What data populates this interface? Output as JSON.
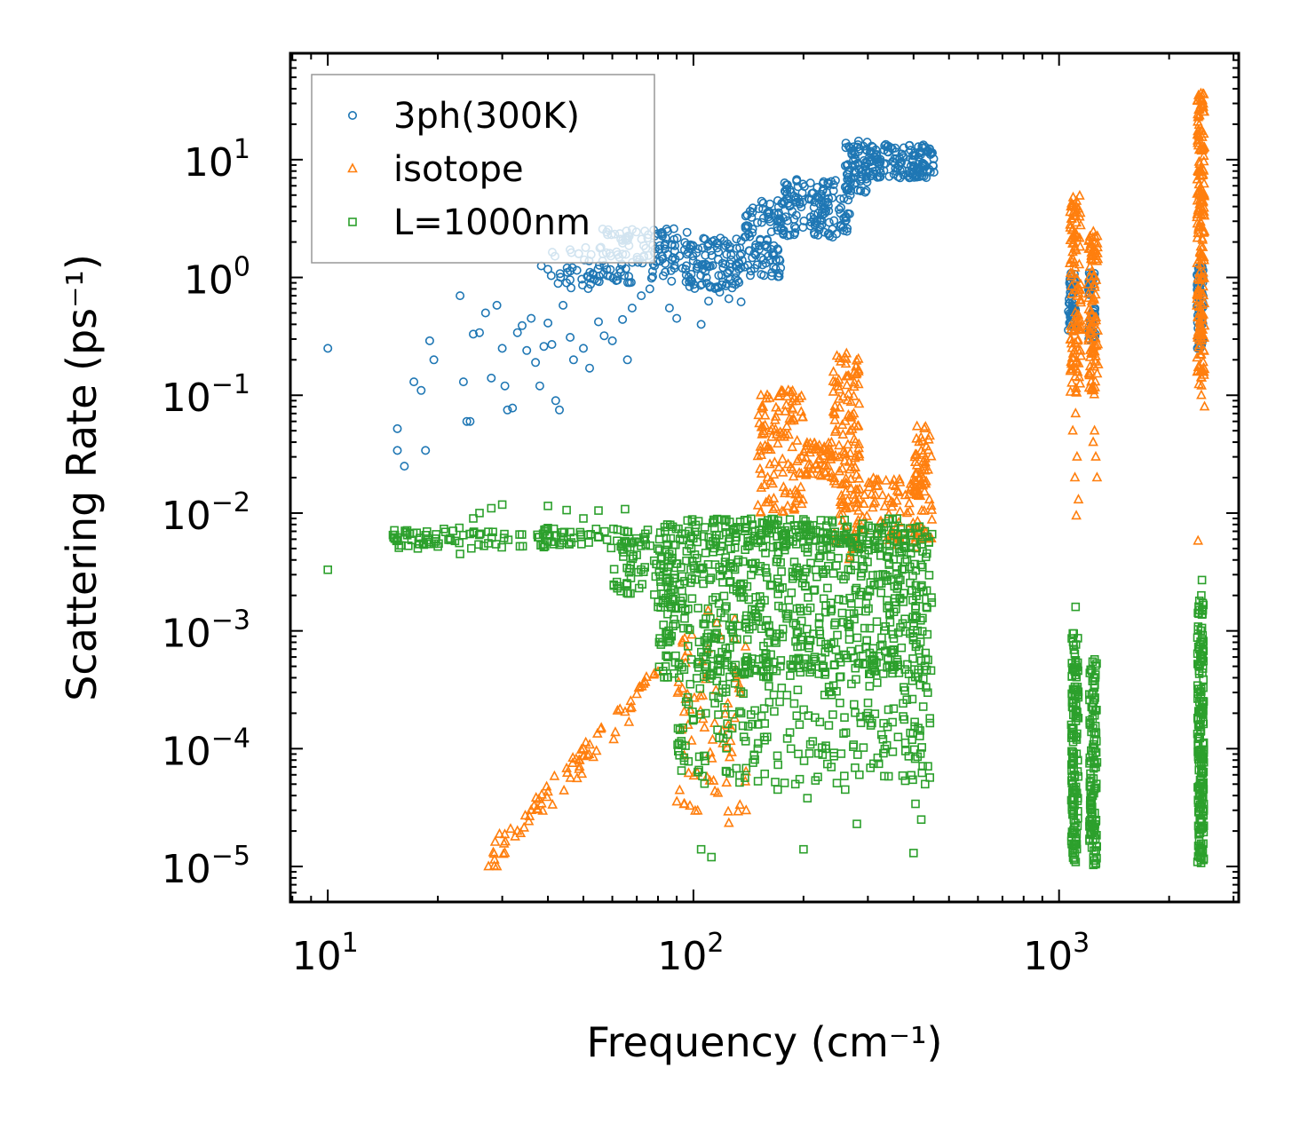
{
  "chart_data": {
    "type": "scatter",
    "xscale": "log",
    "yscale": "log",
    "xlim": [
      7.9,
      3100
    ],
    "ylim": [
      5e-06,
      80
    ],
    "xlabel": "Frequency (cm⁻¹)",
    "ylabel": "Scattering Rate (ps⁻¹)",
    "x_ticks": [
      {
        "value": 10,
        "base": "10",
        "exp": "1"
      },
      {
        "value": 100,
        "base": "10",
        "exp": "2"
      },
      {
        "value": 1000,
        "base": "10",
        "exp": "3"
      }
    ],
    "y_ticks": [
      {
        "value": 10,
        "base": "10",
        "exp": "1"
      },
      {
        "value": 1,
        "base": "10",
        "exp": "0"
      },
      {
        "value": 0.1,
        "base": "10",
        "exp": "−1"
      },
      {
        "value": 0.01,
        "base": "10",
        "exp": "−2"
      },
      {
        "value": 0.001,
        "base": "10",
        "exp": "−3"
      },
      {
        "value": 0.0001,
        "base": "10",
        "exp": "−4"
      },
      {
        "value": 1e-05,
        "base": "10",
        "exp": "−5"
      }
    ],
    "legend_position": "top-left",
    "series": [
      {
        "name": "3ph(300K)",
        "marker": "circle",
        "color": "#1f77b4",
        "points": [
          [
            10,
            0.25
          ],
          [
            15.5,
            0.052
          ],
          [
            15.5,
            0.034
          ],
          [
            16.2,
            0.025
          ],
          [
            17.2,
            0.13
          ],
          [
            18,
            0.11
          ],
          [
            18.5,
            0.034
          ],
          [
            19,
            0.29
          ],
          [
            19.5,
            0.2
          ],
          [
            23,
            0.7
          ],
          [
            23.5,
            0.13
          ],
          [
            24,
            0.06
          ],
          [
            24.5,
            0.06
          ],
          [
            25,
            0.33
          ],
          [
            26,
            0.34
          ],
          [
            27,
            0.5
          ],
          [
            28,
            0.14
          ],
          [
            29,
            0.58
          ],
          [
            30,
            0.25
          ],
          [
            30.5,
            0.12
          ],
          [
            31,
            0.075
          ],
          [
            32,
            0.078
          ],
          [
            33,
            0.34
          ],
          [
            34,
            0.39
          ],
          [
            35,
            0.24
          ],
          [
            36,
            0.45
          ],
          [
            37,
            0.19
          ],
          [
            38,
            0.12
          ],
          [
            39,
            0.26
          ],
          [
            40,
            0.41
          ],
          [
            41,
            0.27
          ],
          [
            42,
            0.09
          ],
          [
            43,
            0.075
          ],
          [
            44,
            0.58
          ],
          [
            45,
            0.9
          ],
          [
            46,
            0.31
          ],
          [
            47,
            0.2
          ],
          [
            48,
            1.15
          ],
          [
            50,
            0.25
          ],
          [
            52,
            0.17
          ],
          [
            55,
            0.42
          ],
          [
            57,
            0.32
          ],
          [
            60,
            0.29
          ],
          [
            62,
            0.95
          ],
          [
            64,
            0.44
          ],
          [
            66,
            0.2
          ],
          [
            68,
            0.55
          ],
          [
            72,
            0.7
          ],
          [
            76,
            0.8
          ],
          [
            86,
            0.55
          ],
          [
            90,
            0.45
          ],
          [
            105,
            0.4
          ],
          [
            110,
            0.63
          ],
          [
            118,
            0.75
          ],
          [
            125,
            0.66
          ],
          [
            135,
            0.62
          ]
        ],
        "bands": [
          {
            "x_start": 38,
            "x_end": 60,
            "y_low": 0.8,
            "y_high": 1.8,
            "n": 40
          },
          {
            "x_start": 55,
            "x_end": 100,
            "y_low": 0.9,
            "y_high": 2.6,
            "n": 120
          },
          {
            "x_start": 95,
            "x_end": 135,
            "y_low": 0.8,
            "y_high": 2.2,
            "n": 100
          },
          {
            "x_start": 135,
            "x_end": 175,
            "y_low": 1.0,
            "y_high": 4.5,
            "n": 100
          },
          {
            "x_start": 175,
            "x_end": 270,
            "y_low": 2.2,
            "y_high": 7.0,
            "n": 140
          },
          {
            "x_start": 260,
            "x_end": 300,
            "y_low": 5.0,
            "y_high": 15.0,
            "n": 70
          },
          {
            "x_start": 300,
            "x_end": 455,
            "y_low": 7.0,
            "y_high": 13.5,
            "n": 140
          },
          {
            "x_start": 1060,
            "x_end": 1110,
            "y_low": 0.35,
            "y_high": 1.2,
            "n": 50
          },
          {
            "x_start": 1200,
            "x_end": 1260,
            "y_low": 0.3,
            "y_high": 1.1,
            "n": 40
          },
          {
            "x_start": 2380,
            "x_end": 2480,
            "y_low": 0.25,
            "y_high": 1.3,
            "n": 70
          }
        ]
      },
      {
        "name": "isotope",
        "marker": "triangle",
        "color": "#ff7f0e",
        "points": [
          [
            27.5,
            1e-05
          ],
          [
            29,
            1e-05
          ],
          [
            30.5,
            1.3e-05
          ],
          [
            33,
            2e-05
          ],
          [
            36,
            3e-05
          ],
          [
            40,
            4.3e-05
          ],
          [
            45,
            6.8e-05
          ],
          [
            50,
            0.0001
          ],
          [
            56,
            0.00015
          ],
          [
            62,
            0.00021
          ],
          [
            70,
            0.00029
          ],
          [
            80,
            0.00045
          ],
          [
            1110,
            0.07
          ],
          [
            1120,
            0.03
          ],
          [
            1090,
            0.05
          ],
          [
            1105,
            0.02
          ],
          [
            1130,
            0.013
          ],
          [
            1115,
            0.0095
          ],
          [
            1250,
            0.05
          ],
          [
            1260,
            0.03
          ],
          [
            1270,
            0.02
          ],
          [
            1240,
            0.04
          ],
          [
            2400,
            0.0058
          ],
          [
            2500,
            0.08
          ],
          [
            2450,
            0.1
          ]
        ],
        "bands": [
          {
            "x_start": 28,
            "x_end": 80,
            "y_low": 1.2e-05,
            "y_high": 0.0004,
            "n": 70,
            "slope": 2.2
          },
          {
            "x_start": 90,
            "x_end": 140,
            "y_low": 2e-05,
            "y_high": 0.0015,
            "n": 80
          },
          {
            "x_start": 150,
            "x_end": 200,
            "y_low": 0.01,
            "y_high": 0.11,
            "n": 120
          },
          {
            "x_start": 200,
            "x_end": 240,
            "y_low": 0.02,
            "y_high": 0.04,
            "n": 50
          },
          {
            "x_start": 240,
            "x_end": 285,
            "y_low": 0.004,
            "y_high": 0.23,
            "n": 140
          },
          {
            "x_start": 290,
            "x_end": 410,
            "y_low": 0.005,
            "y_high": 0.02,
            "n": 70
          },
          {
            "x_start": 400,
            "x_end": 450,
            "y_low": 0.006,
            "y_high": 0.055,
            "n": 70
          },
          {
            "x_start": 1070,
            "x_end": 1150,
            "y_low": 0.1,
            "y_high": 5.0,
            "n": 120
          },
          {
            "x_start": 1200,
            "x_end": 1280,
            "y_low": 0.1,
            "y_high": 2.5,
            "n": 100
          },
          {
            "x_start": 2380,
            "x_end": 2500,
            "y_low": 0.12,
            "y_high": 37.0,
            "n": 200
          }
        ]
      },
      {
        "name": "L=1000nm",
        "marker": "square",
        "color": "#2ca02c",
        "points": [
          [
            10,
            0.0033
          ],
          [
            15.5,
            0.0062
          ],
          [
            16.5,
            0.0065
          ],
          [
            17.5,
            0.0068
          ],
          [
            18.5,
            0.0065
          ],
          [
            19.5,
            0.0055
          ],
          [
            20,
            0.0052
          ],
          [
            23,
            0.0045
          ],
          [
            23.5,
            0.0065
          ],
          [
            25,
            0.009
          ],
          [
            26,
            0.01
          ],
          [
            28,
            0.011
          ],
          [
            30,
            0.0118
          ],
          [
            40,
            0.0115
          ],
          [
            45,
            0.0106
          ],
          [
            50,
            0.009
          ],
          [
            55,
            0.0105
          ],
          [
            65,
            0.0108
          ],
          [
            75,
            0.0072
          ],
          [
            80,
            0.0016
          ],
          [
            85,
            0.0006
          ],
          [
            88,
            0.0011
          ],
          [
            95,
            0.0015
          ],
          [
            105,
            1.4e-05
          ],
          [
            112,
            1.2e-05
          ],
          [
            120,
            0.0003
          ],
          [
            135,
            0.0002
          ],
          [
            150,
            0.0001
          ],
          [
            170,
            4.5e-05
          ],
          [
            190,
            5e-05
          ],
          [
            200,
            1.4e-05
          ],
          [
            205,
            3.8e-05
          ],
          [
            230,
            0.0001
          ],
          [
            260,
            4.5e-05
          ],
          [
            280,
            2.3e-05
          ],
          [
            300,
            0.0002
          ],
          [
            330,
            0.00012
          ],
          [
            350,
            0.0005
          ],
          [
            400,
            1.3e-05
          ],
          [
            405,
            3.4e-05
          ],
          [
            420,
            2.5e-05
          ],
          [
            430,
            5e-05
          ],
          [
            1110,
            0.0016
          ],
          [
            2460,
            0.0027
          ],
          [
            2450,
            0.002
          ]
        ],
        "bands": [
          {
            "x_start": 15,
            "x_end": 75,
            "y_low": 0.005,
            "y_high": 0.0075,
            "n": 120
          },
          {
            "x_start": 60,
            "x_end": 90,
            "y_low": 0.002,
            "y_high": 0.006,
            "n": 60
          },
          {
            "x_start": 80,
            "x_end": 450,
            "y_low": 0.0004,
            "y_high": 0.008,
            "n": 700
          },
          {
            "x_start": 90,
            "x_end": 450,
            "y_low": 5e-05,
            "y_high": 0.0006,
            "n": 260
          },
          {
            "x_start": 95,
            "x_end": 450,
            "y_low": 0.005,
            "y_high": 0.009,
            "n": 150
          },
          {
            "x_start": 1080,
            "x_end": 1130,
            "y_low": 1e-05,
            "y_high": 0.001,
            "n": 140
          },
          {
            "x_start": 1210,
            "x_end": 1270,
            "y_low": 1e-05,
            "y_high": 0.0006,
            "n": 120
          },
          {
            "x_start": 2390,
            "x_end": 2490,
            "y_low": 1e-05,
            "y_high": 0.0018,
            "n": 200
          }
        ]
      }
    ]
  }
}
